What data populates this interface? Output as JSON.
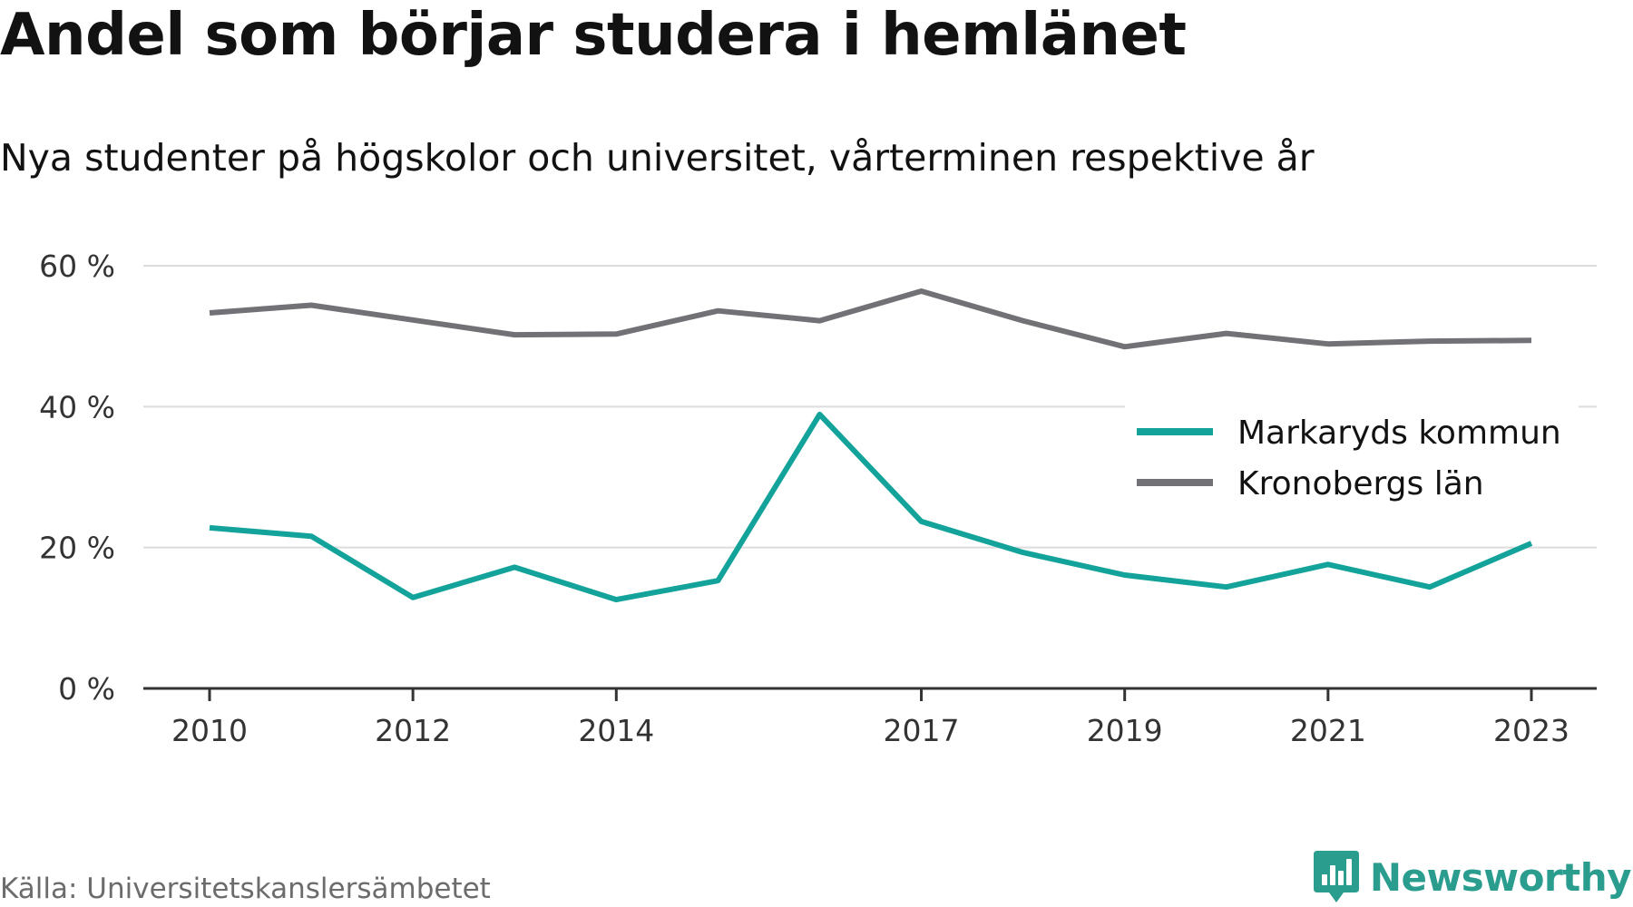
{
  "title": "Andel som börjar studera i hemlänet",
  "subtitle": "Nya studenter på högskolor och universitet, vårterminen respektive år",
  "source": "Källa: Universitetskanslersämbetet",
  "brand": {
    "name": "Newsworthy",
    "logo_icon": "newsworthy-bar-chart-logo-icon",
    "color": "#2a9d8f"
  },
  "chart_data": {
    "type": "line",
    "x": [
      2010,
      2011,
      2012,
      2013,
      2014,
      2015,
      2016,
      2017,
      2018,
      2019,
      2020,
      2021,
      2022,
      2023
    ],
    "x_tick_values": [
      2010,
      2012,
      2014,
      2017,
      2019,
      2021,
      2023
    ],
    "x_tick_labels": [
      "2010",
      "2012",
      "2014",
      "2017",
      "2019",
      "2021",
      "2023"
    ],
    "y_ticks": [
      0,
      20,
      40,
      60
    ],
    "y_tick_labels": [
      "0 %",
      "20 %",
      "40 %",
      "60 %"
    ],
    "ylim": [
      0,
      60
    ],
    "grid": true,
    "legend_position": "right",
    "series": [
      {
        "name": "Markaryds kommun",
        "color": "#13a39a",
        "values": [
          22.8,
          21.6,
          12.9,
          17.2,
          12.6,
          15.3,
          38.9,
          23.7,
          19.3,
          16.1,
          14.4,
          17.6,
          14.4,
          20.6
        ]
      },
      {
        "name": "Kronobergs län",
        "color": "#727176",
        "values": [
          53.3,
          54.4,
          52.3,
          50.2,
          50.3,
          53.6,
          52.2,
          56.4,
          52.2,
          48.5,
          50.4,
          48.9,
          49.3,
          49.4
        ]
      }
    ]
  }
}
